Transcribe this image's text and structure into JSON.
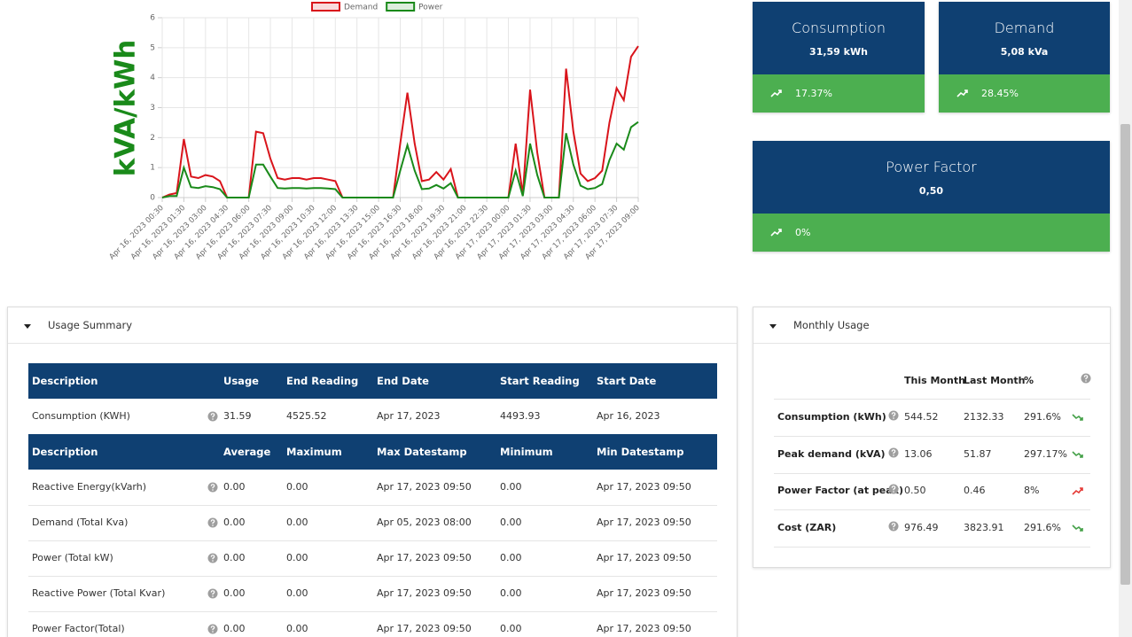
{
  "chart_data": {
    "type": "line",
    "ylabel": "kVA/kWh",
    "legend": "top",
    "grid": true,
    "categories": [
      "Apr 16, 2023 00:30",
      null,
      null,
      "Apr 16, 2023 01:30",
      null,
      null,
      "Apr 16, 2023 03:00",
      null,
      null,
      "Apr 16, 2023 04:30",
      null,
      null,
      "Apr 16, 2023 06:00",
      null,
      null,
      "Apr 16, 2023 07:30",
      null,
      null,
      "Apr 16, 2023 09:00",
      null,
      null,
      "Apr 16, 2023 10:30",
      null,
      null,
      "Apr 16, 2023 12:00",
      null,
      null,
      "Apr 16, 2023 13:30",
      null,
      null,
      "Apr 16, 2023 15:00",
      null,
      null,
      "Apr 16, 2023 16:30",
      null,
      null,
      "Apr 16, 2023 18:00",
      null,
      null,
      "Apr 16, 2023 19:30",
      null,
      null,
      "Apr 16, 2023 21:00",
      null,
      null,
      "Apr 16, 2023 22:30",
      null,
      null,
      "Apr 17, 2023 00:00",
      null,
      null,
      "Apr 17, 2023 01:30",
      null,
      null,
      "Apr 17, 2023 03:00",
      null,
      null,
      "Apr 17, 2023 04:30",
      null,
      null,
      "Apr 17, 2023 06:00",
      null,
      null,
      "Apr 17, 2023 07:30",
      null,
      null,
      "Apr 17, 2023 09:00"
    ],
    "series": [
      {
        "name": "Demand",
        "color": "#d9141b",
        "values": [
          0,
          0.1,
          0.15,
          1.95,
          0.7,
          0.65,
          0.75,
          0.7,
          0.55,
          0,
          0,
          0,
          0,
          2.2,
          2.15,
          1.3,
          0.65,
          0.6,
          0.65,
          0.65,
          0.6,
          0.65,
          0.65,
          0.6,
          0.55,
          0,
          0,
          0,
          0,
          0,
          0,
          0,
          0,
          1.8,
          3.5,
          1.8,
          0.55,
          0.6,
          0.85,
          0.6,
          0.95,
          0,
          0,
          0,
          0,
          0,
          0,
          0,
          0,
          1.8,
          0.1,
          3.6,
          1.5,
          0,
          0,
          0,
          4.3,
          2.2,
          0.8,
          0.55,
          0.65,
          0.9,
          2.5,
          3.65,
          3.25,
          4.7,
          5.05
        ]
      },
      {
        "name": "Power",
        "color": "#1a8a1a",
        "values": [
          0,
          0.05,
          0.05,
          1,
          0.35,
          0.32,
          0.38,
          0.35,
          0.28,
          0,
          0,
          0,
          0,
          1.1,
          1.1,
          0.7,
          0.32,
          0.3,
          0.32,
          0.32,
          0.3,
          0.32,
          0.32,
          0.3,
          0.28,
          0,
          0,
          0,
          0,
          0,
          0,
          0,
          0,
          0.9,
          1.75,
          0.9,
          0.28,
          0.3,
          0.42,
          0.3,
          0.48,
          0,
          0,
          0,
          0,
          0,
          0,
          0,
          0,
          0.9,
          0.05,
          1.8,
          0.75,
          0,
          0,
          0,
          2.15,
          1.1,
          0.4,
          0.28,
          0.32,
          0.45,
          1.25,
          1.8,
          1.6,
          2.35,
          2.52
        ]
      }
    ],
    "ylim": [
      0,
      6
    ],
    "yticks": [
      0,
      1,
      2,
      3,
      4,
      5,
      6
    ]
  },
  "cards": [
    {
      "title": "Consumption",
      "value": "31,59 kWh",
      "change": "17.37%"
    },
    {
      "title": "Demand",
      "value": "5,08 kVa",
      "change": "28.45%"
    },
    {
      "title": "Power Factor",
      "value": "0,50",
      "change": "0%"
    }
  ],
  "usage_summary": {
    "title": "Usage Summary",
    "tables": [
      {
        "columns": [
          "Description",
          "Usage",
          "End Reading",
          "End Date",
          "Start Reading",
          "Start Date"
        ],
        "rows": [
          [
            "Consumption (KWH)",
            "31.59",
            "4525.52",
            "Apr 17, 2023",
            "4493.93",
            "Apr 16, 2023"
          ]
        ]
      },
      {
        "columns": [
          "Description",
          "Average",
          "Maximum",
          "Max Datestamp",
          "Minimum",
          "Min Datestamp"
        ],
        "rows": [
          [
            "Reactive Energy(kVarh)",
            "0.00",
            "0.00",
            "Apr 17, 2023 09:50",
            "0.00",
            "Apr 17, 2023 09:50"
          ],
          [
            "Demand (Total Kva)",
            "0.00",
            "0.00",
            "Apr 05, 2023 08:00",
            "0.00",
            "Apr 17, 2023 09:50"
          ],
          [
            "Power (Total kW)",
            "0.00",
            "0.00",
            "Apr 17, 2023 09:50",
            "0.00",
            "Apr 17, 2023 09:50"
          ],
          [
            "Reactive Power (Total Kvar)",
            "0.00",
            "0.00",
            "Apr 17, 2023 09:50",
            "0.00",
            "Apr 17, 2023 09:50"
          ],
          [
            "Power Factor(Total)",
            "0.00",
            "0.00",
            "Apr 17, 2023 09:50",
            "0.00",
            "Apr 17, 2023 09:50"
          ]
        ]
      }
    ]
  },
  "monthly_usage": {
    "title": "Monthly Usage",
    "columns": [
      "This Month",
      "Last Month",
      "%"
    ],
    "rows": [
      {
        "label": "Consumption (kWh)",
        "this_month": "544.52",
        "last_month": "2132.33",
        "percent": "291.6%",
        "trend": "down"
      },
      {
        "label": "Peak demand (kVA)",
        "this_month": "13.06",
        "last_month": "51.87",
        "percent": "297.17%",
        "trend": "down"
      },
      {
        "label": "Power Factor (at peak)",
        "this_month": "0.50",
        "last_month": "0.46",
        "percent": "8%",
        "trend": "up"
      },
      {
        "label": "Cost (ZAR)",
        "this_month": "976.49",
        "last_month": "3823.91",
        "percent": "291.6%",
        "trend": "down"
      }
    ]
  }
}
